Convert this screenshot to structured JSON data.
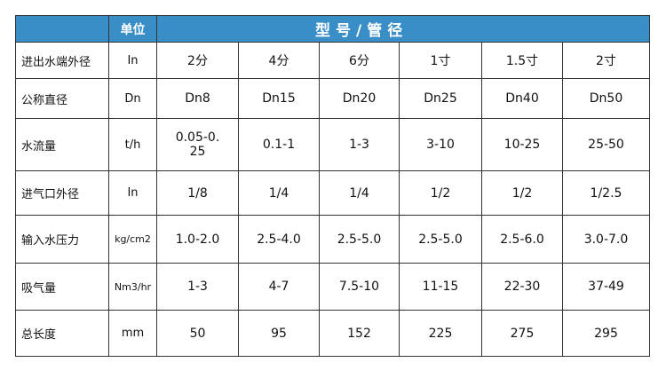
{
  "header": {
    "blank": "",
    "unit": "单位",
    "models": "型号/管径"
  },
  "header_color": "#3a8ec8",
  "rows": [
    {
      "label": "进出水端外径",
      "unit": "In",
      "values": [
        "2分",
        "4分",
        "6分",
        "1寸",
        "1.5寸",
        "2寸"
      ]
    },
    {
      "label": "公称直径",
      "unit": "Dn",
      "values": [
        "Dn8",
        "Dn15",
        "Dn20",
        "Dn25",
        "Dn40",
        "Dn50"
      ]
    },
    {
      "label": "水流量",
      "unit": "t/h",
      "values": [
        "0.05-0.25",
        "0.1-1",
        "1-3",
        "3-10",
        "10-25",
        "25-50"
      ]
    },
    {
      "label": "进气口外径",
      "unit": "In",
      "values": [
        "1/8",
        "1/4",
        "1/4",
        "1/2",
        "1/2",
        "1/2.5"
      ]
    },
    {
      "label": "输入水压力",
      "unit": "kg/cm2",
      "values": [
        "1.0-2.0",
        "2.5-4.0",
        "2.5-5.0",
        "2.5-5.0",
        "2.5-6.0",
        "3.0-7.0"
      ]
    },
    {
      "label": "吸气量",
      "unit": "Nm3/hr",
      "values": [
        "1-3",
        "4-7",
        "7.5-10",
        "11-15",
        "22-30",
        "37-49"
      ]
    },
    {
      "label": "总长度",
      "unit": "mm",
      "values": [
        "50",
        "95",
        "152",
        "225",
        "275",
        "295"
      ]
    }
  ]
}
